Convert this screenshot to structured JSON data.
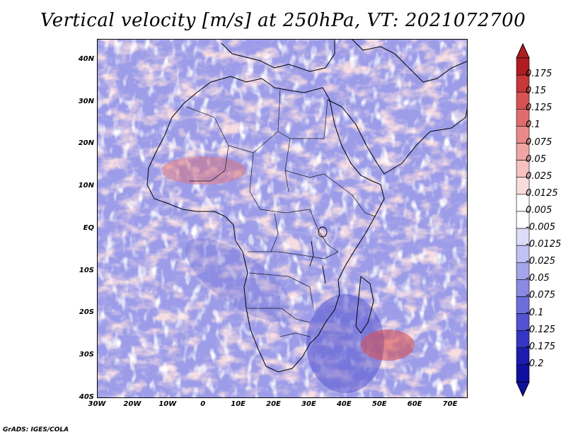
{
  "title": "Vertical velocity [m/s] at 250hPa, VT: 2021072700",
  "credit": "GrADS: IGES/COLA",
  "map": {
    "lat_labels": [
      "40N",
      "30N",
      "20N",
      "10N",
      "EQ",
      "10S",
      "20S",
      "30S",
      "40S"
    ],
    "lat_values": [
      40,
      30,
      20,
      10,
      0,
      -10,
      -20,
      -30,
      -40
    ],
    "lon_labels": [
      "30W",
      "20W",
      "10W",
      "0",
      "10E",
      "20E",
      "30E",
      "40E",
      "50E",
      "60E",
      "70E"
    ],
    "lon_values": [
      -30,
      -20,
      -10,
      0,
      10,
      20,
      30,
      40,
      50,
      60,
      70
    ],
    "lon_range": [
      -30,
      75
    ],
    "lat_range": [
      -40,
      45
    ]
  },
  "colorbar": {
    "labels": [
      "0.175",
      "0.15",
      "0.125",
      "0.1",
      "0.075",
      "0.05",
      "0.025",
      "0.0125",
      "0.005",
      "-0.005",
      "-0.0125",
      "-0.025",
      "-0.05",
      "-0.075",
      "-0.1",
      "-0.125",
      "-0.175",
      "-0.2"
    ],
    "colors": [
      "#b01c20",
      "#c8373a",
      "#d65253",
      "#e06d6d",
      "#e98a8a",
      "#f0a5a5",
      "#f6c1c1",
      "#fadcdc",
      "#ffffff",
      "#ffffff",
      "#dcdcf8",
      "#c1c1f2",
      "#a5a5ec",
      "#8a8ae4",
      "#6d6ddc",
      "#5252d2",
      "#3535c4",
      "#1c1cb0",
      "#1010a0"
    ],
    "top_arrow_color": "#b01c20",
    "bottom_arrow_color": "#1010a0"
  }
}
